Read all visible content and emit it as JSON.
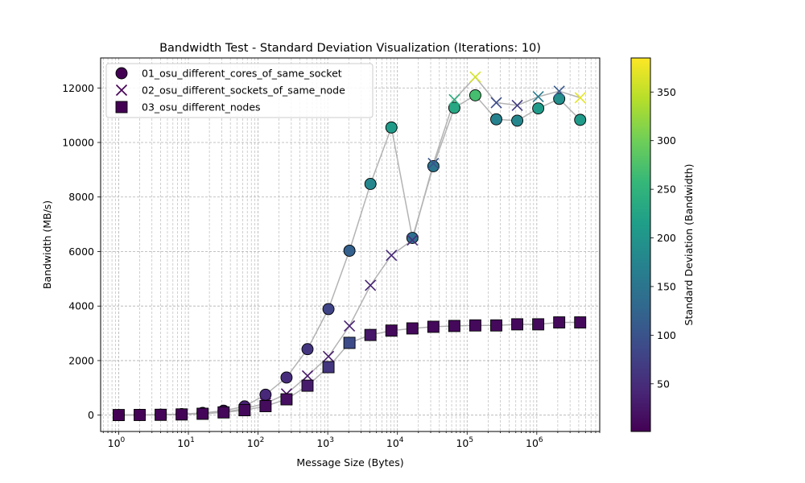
{
  "chart_data": {
    "type": "scatter",
    "title": "Bandwidth Test - Standard Deviation Visualization (Iterations: 10)",
    "xlabel": "Message Size (Bytes)",
    "ylabel": "Bandwidth (MB/s)",
    "x_scale": "log",
    "xlim": [
      0.55,
      8000000
    ],
    "ylim": [
      -600,
      13100
    ],
    "grid": true,
    "legend_position": "top-left",
    "x_tick_labels": [
      "10^0",
      "10^1",
      "10^2",
      "10^3",
      "10^4",
      "10^5",
      "10^6"
    ],
    "y_ticks": [
      0,
      2000,
      4000,
      6000,
      8000,
      10000,
      12000
    ],
    "colorbar": {
      "label": "Standard Deviation (Bandwidth)",
      "colormap": "viridis",
      "range": [
        1,
        385
      ],
      "ticks": [
        50,
        100,
        150,
        200,
        250,
        300,
        350
      ]
    },
    "connector_color": "#b3b3b3",
    "x": [
      1,
      2,
      4,
      8,
      16,
      32,
      64,
      128,
      256,
      512,
      1024,
      2048,
      4096,
      8192,
      16384,
      32768,
      65536,
      131072,
      262144,
      524288,
      1048576,
      2097152,
      4194304
    ],
    "series": [
      {
        "name": "01_osu_different_cores_of_same_socket",
        "marker": "circle",
        "values": [
          4,
          9,
          18,
          37,
          80,
          160,
          320,
          750,
          1380,
          2420,
          3890,
          6030,
          8480,
          10550,
          6500,
          9130,
          11270,
          11730,
          10850,
          10800,
          11250,
          11600,
          10830
        ],
        "std_dev": [
          2,
          3,
          5,
          8,
          12,
          20,
          35,
          45,
          50,
          60,
          80,
          120,
          180,
          210,
          140,
          150,
          230,
          270,
          170,
          180,
          210,
          190,
          210
        ]
      },
      {
        "name": "02_osu_different_sockets_of_same_node",
        "marker": "x",
        "values": [
          3,
          7,
          14,
          28,
          55,
          110,
          240,
          430,
          780,
          1440,
          2150,
          3270,
          4760,
          5860,
          6420,
          9230,
          11570,
          12400,
          11460,
          11360,
          11680,
          11880,
          11640
        ],
        "std_dev": [
          2,
          3,
          4,
          6,
          8,
          10,
          14,
          16,
          20,
          25,
          30,
          35,
          40,
          45,
          50,
          100,
          240,
          360,
          90,
          70,
          160,
          110,
          370
        ]
      },
      {
        "name": "03_osu_different_nodes",
        "marker": "square",
        "values": [
          3,
          6,
          12,
          25,
          50,
          100,
          180,
          330,
          580,
          1080,
          1760,
          2650,
          2940,
          3100,
          3180,
          3240,
          3270,
          3290,
          3290,
          3330,
          3330,
          3400,
          3400
        ],
        "std_dev": [
          2,
          3,
          4,
          5,
          6,
          8,
          10,
          12,
          15,
          30,
          60,
          90,
          25,
          10,
          10,
          10,
          10,
          10,
          10,
          10,
          10,
          10,
          10
        ]
      }
    ]
  }
}
